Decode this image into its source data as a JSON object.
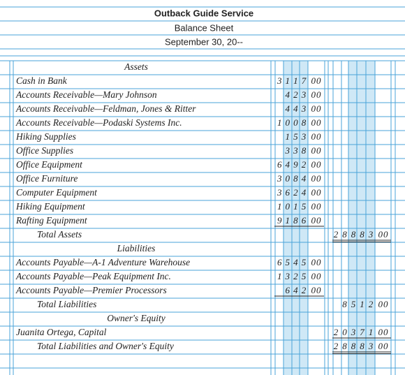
{
  "header": {
    "company": "Outback Guide Service",
    "statement": "Balance Sheet",
    "date": "September 30, 20--"
  },
  "rows": [
    {
      "heading": "Assets"
    },
    {
      "account": "Cash in Bank",
      "col1": {
        "dollars": "3117",
        "cents": "00"
      }
    },
    {
      "account": "Accounts Receivable—Mary Johnson",
      "col1": {
        "dollars": "423",
        "cents": "00"
      }
    },
    {
      "account": "Accounts Receivable—Feldman, Jones & Ritter",
      "col1": {
        "dollars": "443",
        "cents": "00"
      }
    },
    {
      "account": "Accounts Receivable—Podaski Systems Inc.",
      "col1": {
        "dollars": "1008",
        "cents": "00"
      }
    },
    {
      "account": "Hiking Supplies",
      "col1": {
        "dollars": "153",
        "cents": "00"
      }
    },
    {
      "account": "Office Supplies",
      "col1": {
        "dollars": "338",
        "cents": "00"
      }
    },
    {
      "account": "Office Equipment",
      "col1": {
        "dollars": "6492",
        "cents": "00"
      }
    },
    {
      "account": "Office Furniture",
      "col1": {
        "dollars": "3084",
        "cents": "00"
      }
    },
    {
      "account": "Computer Equipment",
      "col1": {
        "dollars": "3624",
        "cents": "00"
      }
    },
    {
      "account": "Hiking Equipment",
      "col1": {
        "dollars": "1015",
        "cents": "00"
      }
    },
    {
      "account": "Rafting Equipment",
      "col1": {
        "dollars": "9186",
        "cents": "00",
        "underline": "single"
      }
    },
    {
      "total": "Total Assets",
      "col2": {
        "dollars": "28883",
        "cents": "00",
        "underline": "double"
      }
    },
    {
      "heading": "Liabilities"
    },
    {
      "account": "Accounts Payable—A-1 Adventure Warehouse",
      "col1": {
        "dollars": "6545",
        "cents": "00"
      }
    },
    {
      "account": "Accounts Payable—Peak Equipment Inc.",
      "col1": {
        "dollars": "1325",
        "cents": "00"
      }
    },
    {
      "account": "Accounts Payable—Premier Processors",
      "col1": {
        "dollars": "642",
        "cents": "00",
        "underline": "single"
      }
    },
    {
      "total": "Total Liabilities",
      "col2": {
        "dollars": "8512",
        "cents": "00"
      }
    },
    {
      "heading": "Owner's Equity"
    },
    {
      "account": "Juanita Ortega, Capital",
      "col2": {
        "dollars": "20371",
        "cents": "00",
        "underline": "single"
      }
    },
    {
      "total": "Total Liabilities and Owner's Equity",
      "col2": {
        "dollars": "28883",
        "cents": "00",
        "underline": "double"
      }
    }
  ]
}
